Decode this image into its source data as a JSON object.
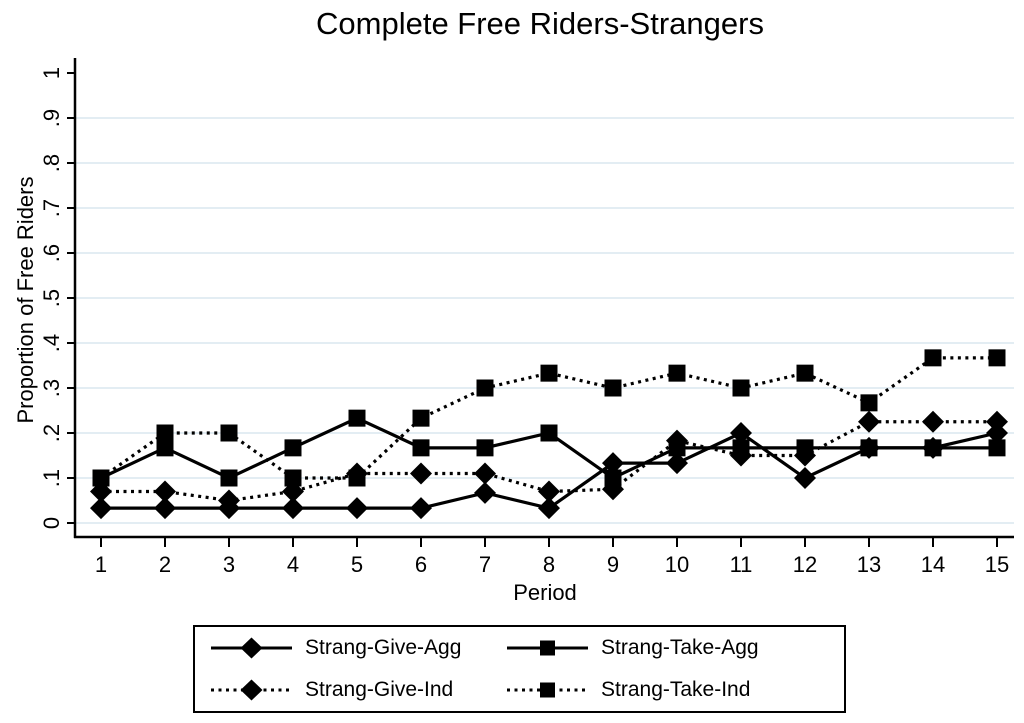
{
  "colors": {
    "line": "#000000",
    "grid": "#e3edf3",
    "background": "#ffffff",
    "text": "#000000"
  },
  "chart_data": {
    "type": "line",
    "title": "Complete Free Riders-Strangers",
    "xlabel": "Period",
    "ylabel": "Proportion of Free Riders",
    "x": [
      1,
      2,
      3,
      4,
      5,
      6,
      7,
      8,
      9,
      10,
      11,
      12,
      13,
      14,
      15
    ],
    "xtick_labels": [
      "1",
      "2",
      "3",
      "4",
      "5",
      "6",
      "7",
      "8",
      "9",
      "10",
      "11",
      "12",
      "13",
      "14",
      "15"
    ],
    "ytick_values": [
      0,
      0.1,
      0.2,
      0.3,
      0.4,
      0.5,
      0.6,
      0.7,
      0.8,
      0.9,
      1
    ],
    "ytick_labels": [
      "0",
      ".1",
      ".2",
      ".3",
      ".4",
      ".5",
      ".6",
      ".7",
      ".8",
      ".9",
      "1"
    ],
    "ylim": [
      0,
      1
    ],
    "grid": true,
    "grid_note": "light horizontal gridlines at 0 through .9",
    "legend_position": "bottom",
    "series": [
      {
        "name": "Strang-Give-Agg",
        "line_style": "solid",
        "marker": "diamond",
        "values": [
          0.033,
          0.033,
          0.033,
          0.033,
          0.033,
          0.033,
          0.067,
          0.033,
          0.133,
          0.133,
          0.2,
          0.1,
          0.167,
          0.167,
          0.2
        ]
      },
      {
        "name": "Strang-Take-Agg",
        "line_style": "solid",
        "marker": "square",
        "values": [
          0.1,
          0.167,
          0.1,
          0.167,
          0.233,
          0.167,
          0.167,
          0.2,
          0.1,
          0.167,
          0.167,
          0.167,
          0.167,
          0.167,
          0.167
        ]
      },
      {
        "name": "Strang-Give-Ind",
        "line_style": "dotted",
        "marker": "diamond",
        "values": [
          0.07,
          0.07,
          0.05,
          0.07,
          0.11,
          0.11,
          0.11,
          0.07,
          0.075,
          0.183,
          0.15,
          0.15,
          0.225,
          0.225,
          0.225
        ]
      },
      {
        "name": "Strang-Take-Ind",
        "line_style": "dotted",
        "marker": "square",
        "values": [
          0.1,
          0.2,
          0.2,
          0.1,
          0.1,
          0.233,
          0.3,
          0.333,
          0.3,
          0.333,
          0.3,
          0.333,
          0.267,
          0.367,
          0.367
        ]
      }
    ]
  }
}
